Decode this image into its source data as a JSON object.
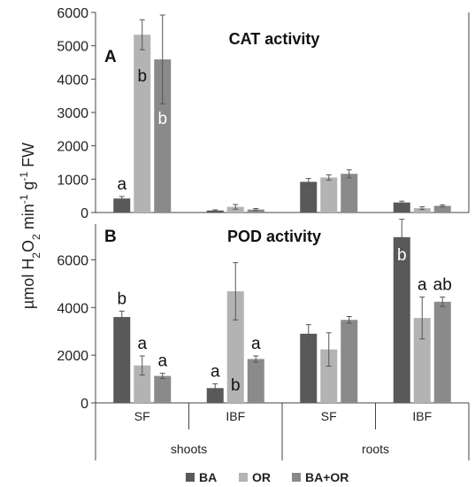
{
  "y_axis_label": "µmol H2O2 min-1 g-1 FW",
  "x_axis": {
    "categories": [
      "SF",
      "IBF",
      "SF",
      "IBF"
    ],
    "groups": [
      "shoots",
      "roots"
    ]
  },
  "legend": [
    "BA",
    "OR",
    "BA+OR"
  ],
  "colors": {
    "BA": "#595959",
    "OR": "#b3b3b3",
    "BA+OR": "#8a8a8a"
  },
  "chart_data": [
    {
      "type": "bar",
      "panel": "A",
      "title": "CAT activity",
      "categories": [
        "shoots SF",
        "shoots IBF",
        "roots SF",
        "roots IBF"
      ],
      "ylim": [
        0,
        6000
      ],
      "yticks": [
        0,
        1000,
        2000,
        3000,
        4000,
        5000,
        6000
      ],
      "series": [
        {
          "name": "BA",
          "values": [
            420,
            60,
            920,
            300
          ],
          "errors": [
            60,
            20,
            100,
            40
          ],
          "letters": [
            "a",
            "",
            "",
            ""
          ]
        },
        {
          "name": "OR",
          "values": [
            5330,
            170,
            1050,
            130
          ],
          "errors": [
            450,
            70,
            80,
            40
          ],
          "letters": [
            "b",
            "",
            "",
            ""
          ]
        },
        {
          "name": "BA+OR",
          "values": [
            4590,
            90,
            1160,
            200
          ],
          "errors": [
            1330,
            30,
            120,
            30
          ],
          "letters": [
            "b",
            "",
            "",
            ""
          ]
        }
      ]
    },
    {
      "type": "bar",
      "panel": "B",
      "title": "POD activity",
      "categories": [
        "shoots SF",
        "shoots IBF",
        "roots SF",
        "roots IBF"
      ],
      "ylim": [
        0,
        7500
      ],
      "yticks": [
        0,
        2000,
        4000,
        6000
      ],
      "series": [
        {
          "name": "BA",
          "values": [
            3600,
            620,
            2900,
            6950
          ],
          "errors": [
            250,
            180,
            380,
            750
          ],
          "letters": [
            "b",
            "a",
            "",
            "b"
          ]
        },
        {
          "name": "OR",
          "values": [
            1570,
            4680,
            2240,
            3560
          ],
          "errors": [
            400,
            1200,
            700,
            880
          ],
          "letters": [
            "a",
            "b",
            "",
            "a"
          ]
        },
        {
          "name": "BA+OR",
          "values": [
            1130,
            1840,
            3480,
            4240
          ],
          "errors": [
            110,
            130,
            140,
            200
          ],
          "letters": [
            "a",
            "a",
            "",
            "ab"
          ]
        }
      ]
    }
  ]
}
